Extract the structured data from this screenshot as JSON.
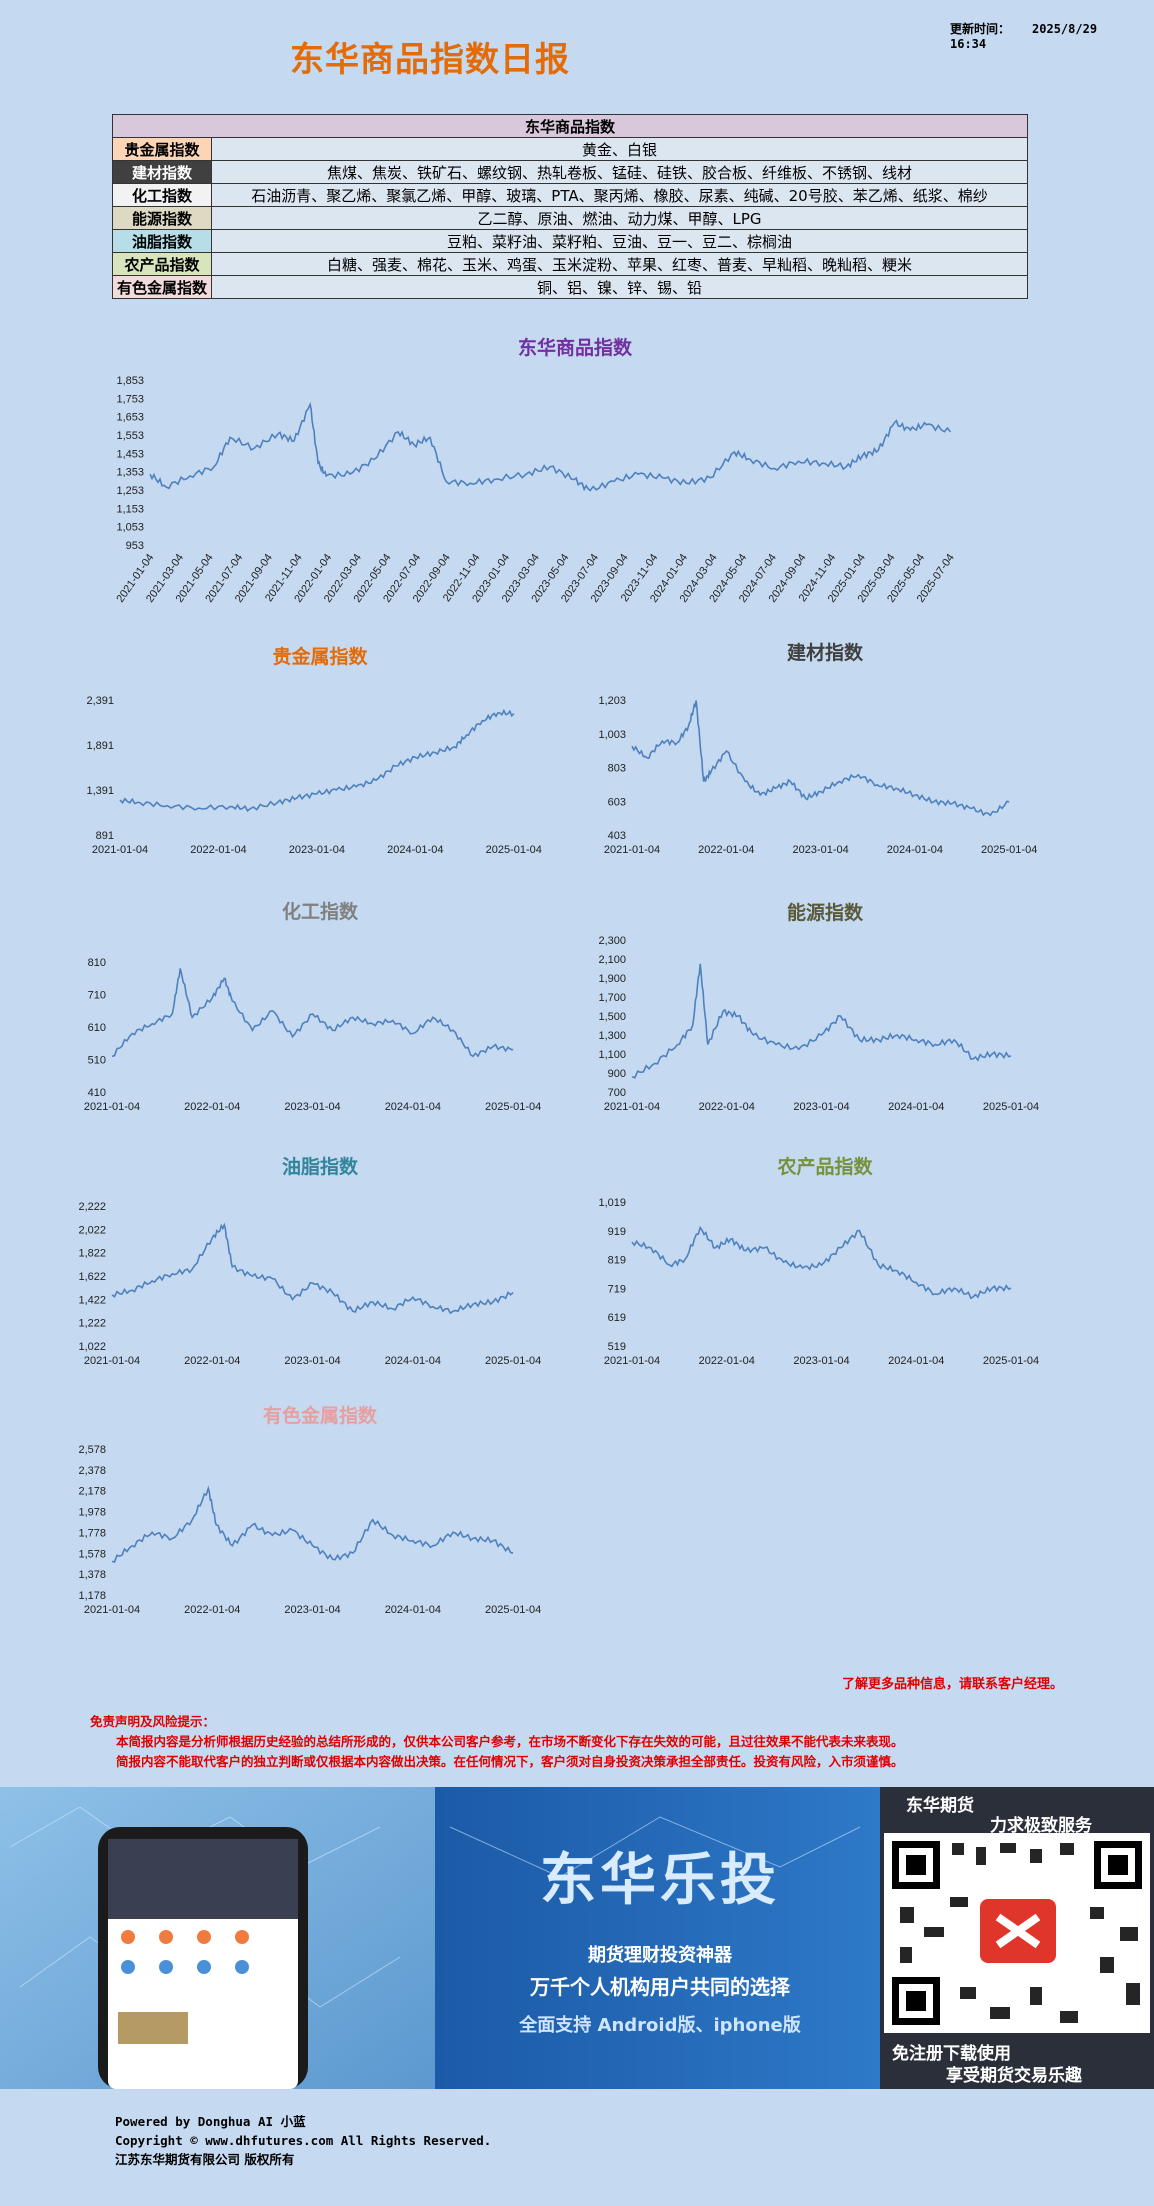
{
  "header": {
    "title": "东华商品指数日报",
    "update_label": "更新时间：",
    "update_time": "2025/8/29 16:34"
  },
  "category_table": {
    "header": "东华商品指数",
    "rows": [
      {
        "name": "贵金属指数",
        "items": "黄金、白银",
        "bg": "#fbd5b5",
        "fg": "#000000"
      },
      {
        "name": "建材指数",
        "items": "焦煤、焦炭、铁矿石、螺纹钢、热轧卷板、锰硅、硅铁、胶合板、纤维板、不锈钢、线材",
        "bg": "#404040",
        "fg": "#ffffff"
      },
      {
        "name": "化工指数",
        "items": "石油沥青、聚乙烯、聚氯乙烯、甲醇、玻璃、PTA、聚丙烯、橡胶、尿素、纯碱、20号胶、苯乙烯、纸浆、棉纱",
        "bg": "#f2f2f2",
        "fg": "#000000"
      },
      {
        "name": "能源指数",
        "items": "乙二醇、原油、燃油、动力煤、甲醇、LPG",
        "bg": "#ddd9c3",
        "fg": "#000000"
      },
      {
        "name": "油脂指数",
        "items": "豆粕、菜籽油、菜籽粕、豆油、豆一、豆二、棕榈油",
        "bg": "#b7dee8",
        "fg": "#000000"
      },
      {
        "name": "农产品指数",
        "items": "白糖、强麦、棉花、玉米、鸡蛋、玉米淀粉、苹果、红枣、普麦、早籼稻、晚籼稻、粳米",
        "bg": "#d7e4bc",
        "fg": "#000000"
      },
      {
        "name": "有色金属指数",
        "items": "铜、铝、镍、锌、锡、铅",
        "bg": "#f2dcdb",
        "fg": "#000000"
      }
    ]
  },
  "chart_data": [
    {
      "type": "line",
      "title": "东华商品指数",
      "title_color": "#7030a0",
      "line_color": "#4f81bd",
      "yticks": [
        "1,853",
        "1,753",
        "1,653",
        "1,553",
        "1,453",
        "1,353",
        "1,253",
        "1,153",
        "1,053",
        "953"
      ],
      "ylim": [
        953,
        1853
      ],
      "xticks": [
        "2021-01-04",
        "2021-03-04",
        "2021-05-04",
        "2021-07-04",
        "2021-09-04",
        "2021-11-04",
        "2022-01-04",
        "2022-03-04",
        "2022-05-04",
        "2022-07-04",
        "2022-09-04",
        "2022-11-04",
        "2023-01-04",
        "2023-03-04",
        "2023-05-04",
        "2023-07-04",
        "2023-09-04",
        "2023-11-04",
        "2024-01-04",
        "2024-03-04",
        "2024-05-04",
        "2024-07-04",
        "2024-09-04",
        "2024-11-04",
        "2025-01-04",
        "2025-03-04",
        "2025-05-04",
        "2025-07-04"
      ],
      "x": [
        0,
        0.02,
        0.05,
        0.08,
        0.1,
        0.13,
        0.16,
        0.18,
        0.2,
        0.21,
        0.22,
        0.25,
        0.28,
        0.31,
        0.33,
        0.35,
        0.37,
        0.4,
        0.43,
        0.47,
        0.5,
        0.53,
        0.55,
        0.58,
        0.61,
        0.64,
        0.67,
        0.7,
        0.73,
        0.75,
        0.78,
        0.81,
        0.84,
        0.87,
        0.89,
        0.91,
        0.93,
        0.95,
        0.97,
        1.0
      ],
      "values": [
        1340,
        1270,
        1330,
        1380,
        1540,
        1480,
        1560,
        1520,
        1720,
        1400,
        1330,
        1340,
        1420,
        1570,
        1500,
        1540,
        1300,
        1290,
        1310,
        1340,
        1380,
        1310,
        1250,
        1300,
        1340,
        1320,
        1290,
        1320,
        1460,
        1420,
        1370,
        1410,
        1400,
        1380,
        1440,
        1470,
        1620,
        1580,
        1610,
        1570
      ]
    },
    {
      "type": "line",
      "title": "贵金属指数",
      "title_color": "#e36c09",
      "line_color": "#4f81bd",
      "yticks": [
        "2,391",
        "1,891",
        "1,391",
        "891"
      ],
      "ylim": [
        891,
        2591
      ],
      "xticks": [
        "2021-01-04",
        "2022-01-04",
        "2023-01-04",
        "2024-01-04",
        "2025-01-04"
      ],
      "x": [
        0,
        0.05,
        0.12,
        0.2,
        0.28,
        0.33,
        0.4,
        0.45,
        0.5,
        0.55,
        0.6,
        0.65,
        0.7,
        0.75,
        0.8,
        0.85,
        0.88,
        0.92,
        0.96,
        1.0
      ],
      "values": [
        1330,
        1300,
        1260,
        1230,
        1250,
        1220,
        1300,
        1360,
        1410,
        1460,
        1500,
        1580,
        1760,
        1870,
        1930,
        2000,
        2150,
        2330,
        2430,
        2420
      ]
    },
    {
      "type": "line",
      "title": "建材指数",
      "title_color": "#404040",
      "line_color": "#4f81bd",
      "yticks": [
        "1,203",
        "1,003",
        "803",
        "603",
        "403"
      ],
      "ylim": [
        403,
        1203
      ],
      "xticks": [
        "2021-01-04",
        "2022-01-04",
        "2023-01-04",
        "2024-01-04",
        "2025-01-04"
      ],
      "x": [
        0,
        0.04,
        0.08,
        0.12,
        0.15,
        0.17,
        0.19,
        0.21,
        0.25,
        0.3,
        0.34,
        0.38,
        0.42,
        0.46,
        0.5,
        0.55,
        0.6,
        0.65,
        0.7,
        0.75,
        0.8,
        0.85,
        0.9,
        0.95,
        1.0
      ],
      "values": [
        930,
        860,
        960,
        950,
        1050,
        1200,
        720,
        780,
        900,
        720,
        640,
        680,
        720,
        620,
        660,
        720,
        760,
        700,
        680,
        640,
        600,
        590,
        560,
        520,
        600
      ]
    },
    {
      "type": "line",
      "title": "化工指数",
      "title_color": "#808080",
      "line_color": "#4f81bd",
      "yticks": [
        "810",
        "710",
        "610",
        "510",
        "410"
      ],
      "ylim": [
        410,
        810
      ],
      "xticks": [
        "2021-01-04",
        "2022-01-04",
        "2023-01-04",
        "2024-01-04",
        "2025-01-04"
      ],
      "x": [
        0,
        0.05,
        0.1,
        0.15,
        0.17,
        0.2,
        0.25,
        0.28,
        0.3,
        0.35,
        0.4,
        0.45,
        0.5,
        0.55,
        0.6,
        0.65,
        0.7,
        0.75,
        0.8,
        0.85,
        0.9,
        0.95,
        1.0
      ],
      "values": [
        520,
        590,
        620,
        650,
        790,
        640,
        700,
        760,
        690,
        600,
        660,
        580,
        650,
        600,
        640,
        620,
        630,
        590,
        640,
        600,
        520,
        550,
        540
      ]
    },
    {
      "type": "line",
      "title": "能源指数",
      "title_color": "#5a5a3a",
      "line_color": "#4f81bd",
      "yticks": [
        "2,300",
        "2,100",
        "1,900",
        "1,700",
        "1,500",
        "1,300",
        "1,100",
        "900",
        "700"
      ],
      "ylim": [
        700,
        2300
      ],
      "xticks": [
        "2021-01-04",
        "2022-01-04",
        "2023-01-04",
        "2024-01-04",
        "2025-01-04"
      ],
      "x": [
        0,
        0.06,
        0.12,
        0.16,
        0.18,
        0.2,
        0.24,
        0.28,
        0.32,
        0.38,
        0.44,
        0.5,
        0.55,
        0.6,
        0.65,
        0.7,
        0.75,
        0.8,
        0.85,
        0.9,
        0.95,
        1.0
      ],
      "values": [
        860,
        1000,
        1200,
        1400,
        2050,
        1200,
        1550,
        1500,
        1300,
        1200,
        1150,
        1300,
        1500,
        1250,
        1250,
        1300,
        1250,
        1200,
        1250,
        1050,
        1100,
        1080
      ]
    },
    {
      "type": "line",
      "title": "油脂指数",
      "title_color": "#31859c",
      "line_color": "#4f81bd",
      "yticks": [
        "2,222",
        "2,022",
        "1,822",
        "1,622",
        "1,422",
        "1,222",
        "1,022"
      ],
      "ylim": [
        1022,
        2222
      ],
      "xticks": [
        "2021-01-04",
        "2022-01-04",
        "2023-01-04",
        "2024-01-04",
        "2025-01-04"
      ],
      "x": [
        0,
        0.05,
        0.1,
        0.15,
        0.2,
        0.25,
        0.28,
        0.3,
        0.35,
        0.4,
        0.45,
        0.5,
        0.55,
        0.6,
        0.65,
        0.7,
        0.75,
        0.8,
        0.85,
        0.9,
        0.95,
        1.0
      ],
      "values": [
        1460,
        1500,
        1580,
        1640,
        1680,
        1950,
        2060,
        1700,
        1620,
        1600,
        1420,
        1560,
        1480,
        1320,
        1400,
        1340,
        1440,
        1360,
        1320,
        1380,
        1400,
        1480
      ]
    },
    {
      "type": "line",
      "title": "农产品指数",
      "title_color": "#76923c",
      "line_color": "#4f81bd",
      "yticks": [
        "1,019",
        "919",
        "819",
        "719",
        "619",
        "519"
      ],
      "ylim": [
        519,
        1019
      ],
      "xticks": [
        "2021-01-04",
        "2022-01-04",
        "2023-01-04",
        "2024-01-04",
        "2025-01-04"
      ],
      "x": [
        0,
        0.05,
        0.1,
        0.14,
        0.18,
        0.22,
        0.26,
        0.3,
        0.35,
        0.4,
        0.45,
        0.5,
        0.55,
        0.6,
        0.65,
        0.7,
        0.75,
        0.8,
        0.85,
        0.9,
        0.95,
        1.0
      ],
      "values": [
        880,
        860,
        800,
        820,
        930,
        860,
        890,
        850,
        860,
        810,
        790,
        800,
        860,
        920,
        800,
        780,
        740,
        700,
        720,
        690,
        720,
        720
      ]
    },
    {
      "type": "line",
      "title": "有色金属指数",
      "title_color": "#e6a0a0",
      "line_color": "#4f81bd",
      "yticks": [
        "2,578",
        "2,378",
        "2,178",
        "1,978",
        "1,778",
        "1,578",
        "1,378",
        "1,178"
      ],
      "ylim": [
        1178,
        2578
      ],
      "xticks": [
        "2021-01-04",
        "2022-01-04",
        "2023-01-04",
        "2024-01-04",
        "2025-01-04"
      ],
      "x": [
        0,
        0.05,
        0.1,
        0.15,
        0.2,
        0.24,
        0.26,
        0.3,
        0.35,
        0.4,
        0.45,
        0.5,
        0.55,
        0.6,
        0.65,
        0.7,
        0.75,
        0.8,
        0.85,
        0.9,
        0.95,
        1.0
      ],
      "values": [
        1500,
        1650,
        1780,
        1720,
        1900,
        2200,
        1850,
        1650,
        1850,
        1750,
        1800,
        1650,
        1520,
        1580,
        1900,
        1750,
        1700,
        1650,
        1780,
        1720,
        1700,
        1580
      ]
    }
  ],
  "contact": "了解更多品种信息，请联系客户经理。",
  "disclaimer": {
    "heading": "免责声明及风险提示：",
    "line1": "本简报内容是分析师根据历史经验的总结所形成的，仅供本公司客户参考，在市场不断变化下存在失效的可能，且过往效果不能代表未来表现。",
    "line2": "简报内容不能取代客户的独立判断或仅根据本内容做出决策。在任何情况下，客户须对自身投资决策承担全部责任。投资有风险，入市须谨慎。"
  },
  "banner": {
    "app_title": "东华乐投",
    "slogan1": "期货理财投资神器",
    "slogan2": "万千个人机构用户共同的选择",
    "slogan3": "全面支持  Android版、iphone版",
    "qr_top1": "东华期货",
    "qr_top2": "力求极致服务",
    "qr_bottom1": "免注册下载使用",
    "qr_bottom2": "享受期货交易乐趣"
  },
  "footer": {
    "line1": "Powered by Donghua AI 小蓝",
    "line2": "Copyright © www.dhfutures.com  All Rights Reserved.",
    "line3": "江苏东华期货有限公司    版权所有"
  }
}
